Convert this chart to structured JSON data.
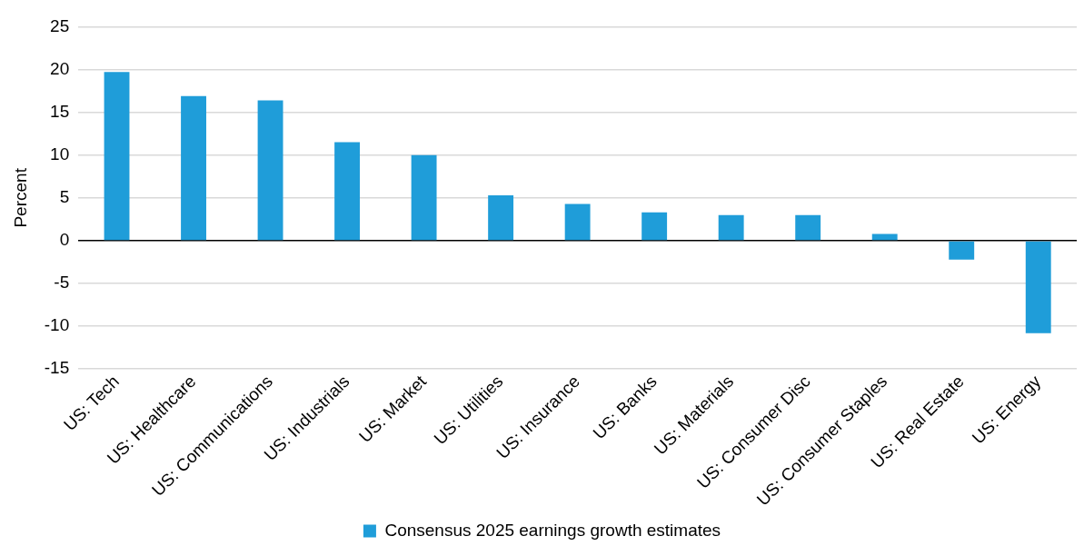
{
  "chart_data": {
    "type": "bar",
    "ylabel": "Percent",
    "categories": [
      "US: Tech",
      "US: Healthcare",
      "US: Communications",
      "US: Industrials",
      "US: Market",
      "US: Utilities",
      "US: Insurance",
      "US: Banks",
      "US: Materials",
      "US: Consumer Disc",
      "US: Consumer Staples",
      "US: Real Estate",
      "US: Energy"
    ],
    "series": [
      {
        "name": "Consensus 2025 earnings growth estimates",
        "color": "#1f9dd9",
        "values": [
          19.7,
          16.9,
          16.4,
          11.5,
          10.0,
          5.3,
          4.3,
          3.3,
          3.0,
          3.0,
          0.8,
          -2.2,
          -10.8
        ]
      }
    ],
    "ylim": [
      -15,
      25
    ],
    "yticks": [
      -15,
      -10,
      -5,
      0,
      5,
      10,
      15,
      20,
      25
    ],
    "grid": "y",
    "legend": "bottom"
  }
}
